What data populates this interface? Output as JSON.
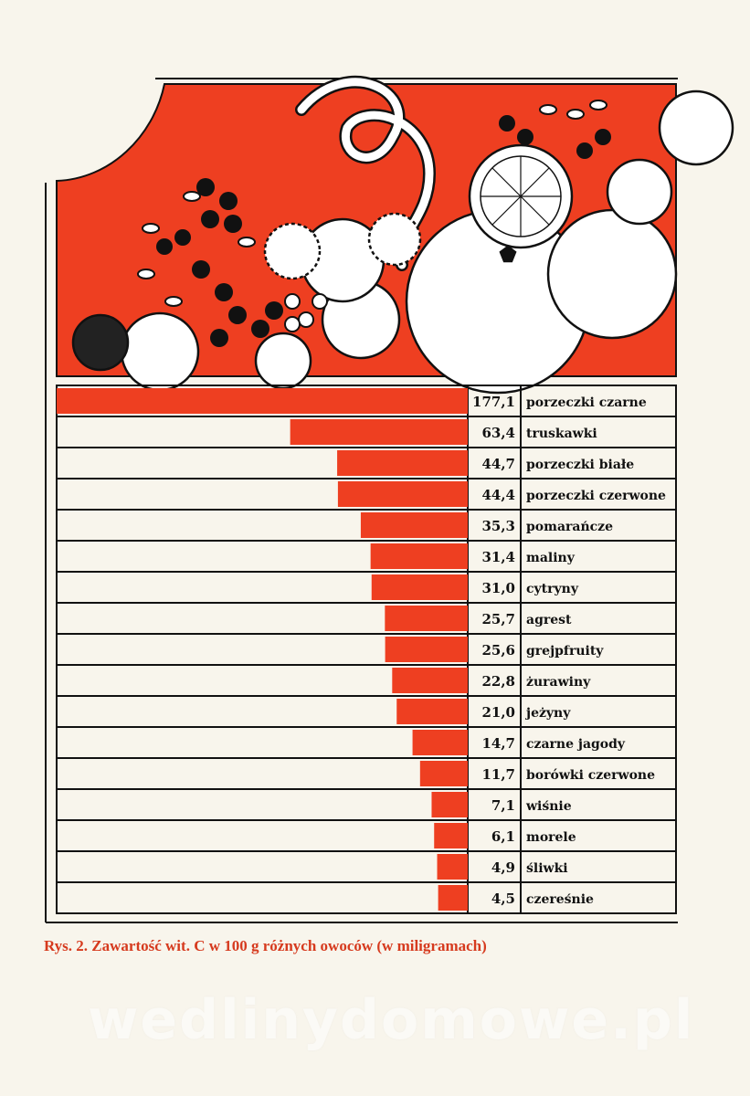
{
  "caption": "Rys. 2. Zawartość wit. C w 100 g różnych owoców (w miligramach)",
  "watermark": "wedlinydomowe.pl",
  "colors": {
    "bar": "#ee3f21",
    "ink": "#111111",
    "paper": "#f8f5ec",
    "caption": "#d63a1e"
  },
  "chart_data": {
    "type": "bar",
    "orientation": "horizontal",
    "title": "",
    "categories": [
      "porzeczki czarne",
      "truskawki",
      "porzeczki białe",
      "porzeczki czerwone",
      "pomarańcze",
      "maliny",
      "cytryny",
      "agrest",
      "grejpfruity",
      "żurawiny",
      "jeżyny",
      "czarne jagody",
      "borówki czerwone",
      "wiśnie",
      "morele",
      "śliwki",
      "czereśnie"
    ],
    "values": [
      177.1,
      63.4,
      44.7,
      44.4,
      35.3,
      31.4,
      31.0,
      25.7,
      25.6,
      22.8,
      21.0,
      14.7,
      11.7,
      7.1,
      6.1,
      4.9,
      4.5
    ],
    "value_labels": [
      "177,1",
      "63,4",
      "44,7",
      "44,4",
      "35,3",
      "31,4",
      "31,0",
      "25,7",
      "25,6",
      "22,8",
      "21,0",
      "14,7",
      "11,7",
      "7,1",
      "6,1",
      "4,9",
      "4,5"
    ],
    "legend": "none",
    "grid": false
  }
}
